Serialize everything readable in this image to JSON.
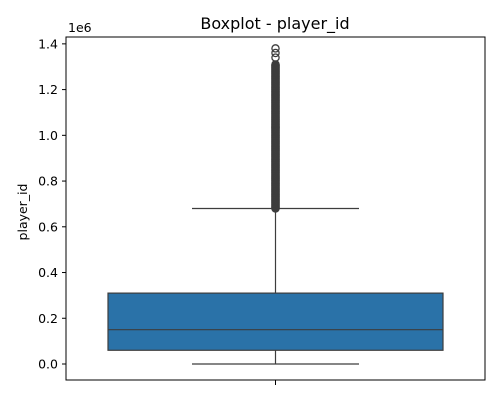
{
  "chart_data": {
    "type": "box",
    "title": "Boxplot - player_id",
    "xlabel": "",
    "ylabel": "player_id",
    "y_offset_text": "1e6",
    "scale_factor": 1000000,
    "ylim": [
      -0.07,
      1.43
    ],
    "y_ticks": [
      0.0,
      0.2,
      0.4,
      0.6,
      0.8,
      1.0,
      1.2,
      1.4
    ],
    "y_tick_labels": [
      "0.0",
      "0.2",
      "0.4",
      "0.6",
      "0.8",
      "1.0",
      "1.2",
      "1.4"
    ],
    "box": {
      "min": 0,
      "q1": 60000,
      "median": 150000,
      "q3": 310000,
      "max": 680000,
      "outliers_from": 680000,
      "outliers_to": 1310000,
      "extreme_outliers": [
        1340000,
        1360000,
        1380000
      ]
    },
    "colors": {
      "box_fill": "#2a72a8",
      "line": "#3d3d3d"
    },
    "grid": false,
    "legend": "none"
  }
}
